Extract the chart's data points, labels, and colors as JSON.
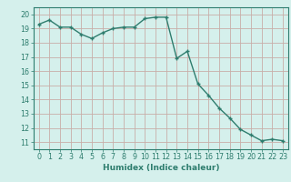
{
  "x": [
    0,
    1,
    2,
    3,
    4,
    5,
    6,
    7,
    8,
    9,
    10,
    11,
    12,
    13,
    14,
    15,
    16,
    17,
    18,
    19,
    20,
    21,
    22,
    23
  ],
  "y": [
    19.3,
    19.6,
    19.1,
    19.1,
    18.6,
    18.3,
    18.7,
    19.0,
    19.1,
    19.1,
    19.7,
    19.8,
    19.8,
    16.9,
    17.4,
    15.1,
    14.3,
    13.4,
    12.7,
    11.9,
    11.5,
    11.1,
    11.2,
    11.1
  ],
  "line_color": "#2e7d6e",
  "marker": "+",
  "markersize": 3.5,
  "linewidth": 1.0,
  "bg_color": "#d5f0ec",
  "grid_color": "#c8aea8",
  "xlabel": "Humidex (Indice chaleur)",
  "xlim": [
    -0.5,
    23.5
  ],
  "ylim": [
    10.5,
    20.5
  ],
  "yticks": [
    11,
    12,
    13,
    14,
    15,
    16,
    17,
    18,
    19,
    20
  ],
  "xticks": [
    0,
    1,
    2,
    3,
    4,
    5,
    6,
    7,
    8,
    9,
    10,
    11,
    12,
    13,
    14,
    15,
    16,
    17,
    18,
    19,
    20,
    21,
    22,
    23
  ],
  "tick_color": "#2e7d6e",
  "label_color": "#2e7d6e",
  "font_size": 5.8,
  "xlabel_fontsize": 6.5
}
